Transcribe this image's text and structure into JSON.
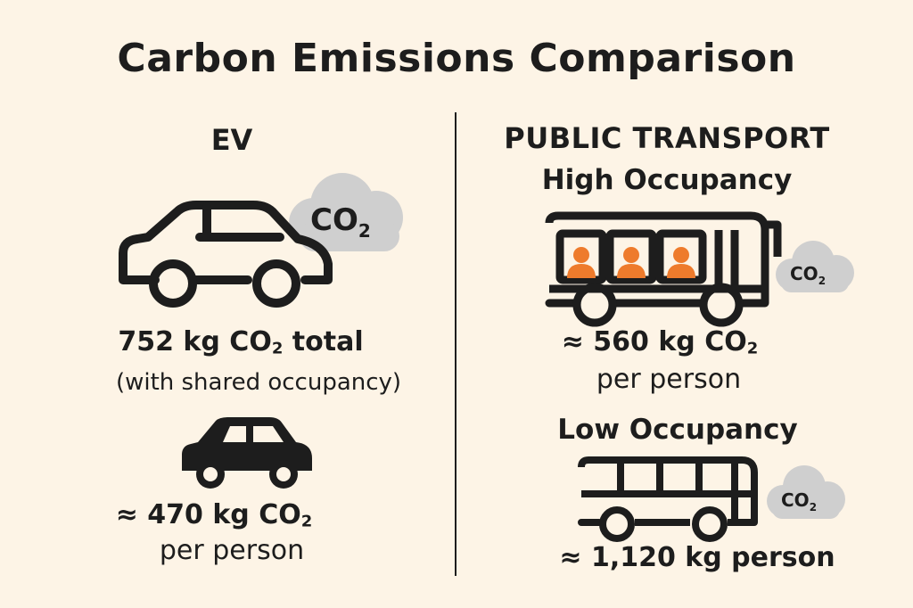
{
  "title": "Carbon Emissions Comparison",
  "colors": {
    "background": "#fdf4e6",
    "ink": "#1d1d1d",
    "cloud": "#cfcfcf",
    "passenger": "#ee7b2c"
  },
  "ev": {
    "heading": "EV",
    "cloud_label": "CO",
    "cloud_sub": "2",
    "total_prefix": "752 kg CO",
    "total_sub": "2",
    "total_suffix": " total",
    "note": "(with shared occupancy)",
    "per_person_prefix": "≈ 470 kg CO",
    "per_person_sub": "2",
    "per_person_unit": "per person"
  },
  "public_transport": {
    "heading": "PUBLIC TRANSPORT",
    "high": {
      "label": "High Occupancy",
      "cloud_label": "CO",
      "cloud_sub": "2",
      "value_prefix": "≈ 560 kg CO",
      "value_sub": "2",
      "unit": "per person"
    },
    "low": {
      "label": "Low Occupancy",
      "cloud_label": "CO",
      "cloud_sub": "2",
      "value": "≈ 1,120 kg person"
    }
  }
}
